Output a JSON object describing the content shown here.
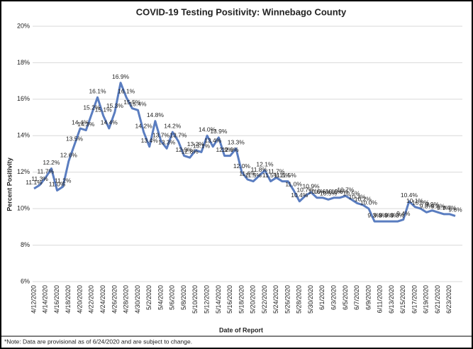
{
  "chart_data": {
    "type": "line",
    "title": "COVID-19 Testing Positivity: Winnebago County",
    "x_label": "Date of Report",
    "y_label": "Percent Positivity",
    "note": "*Note: Data are provisional as of 6/24/2020 and are subject to change.",
    "color": "#5a7dc0",
    "grid": true,
    "ylim": [
      6,
      20
    ],
    "yticks": [
      {
        "value": 6,
        "label": "6%"
      },
      {
        "value": 8,
        "label": "8%"
      },
      {
        "value": 10,
        "label": "10%"
      },
      {
        "value": 12,
        "label": "12%"
      },
      {
        "value": 14,
        "label": "14%"
      },
      {
        "value": 16,
        "label": "16%"
      },
      {
        "value": 18,
        "label": "18%"
      },
      {
        "value": 20,
        "label": "20%"
      }
    ],
    "categories": [
      "4/12/2020",
      null,
      "4/14/2020",
      null,
      "4/16/2020",
      null,
      "4/18/2020",
      null,
      "4/20/2020",
      null,
      "4/22/2020",
      null,
      "4/24/2020",
      null,
      "4/26/2020",
      null,
      "4/28/2020",
      null,
      "4/30/2020",
      null,
      "5/2/2020",
      null,
      "5/4/2020",
      null,
      "5/6/2020",
      null,
      "5/8/2020",
      null,
      "5/10/2020",
      null,
      "5/12/2020",
      null,
      "5/14/2020",
      null,
      "5/16/2020",
      null,
      "5/18/2020",
      null,
      "5/20/2020",
      null,
      "5/22/2020",
      null,
      "5/24/2020",
      null,
      "5/26/2020",
      null,
      "5/28/2020",
      null,
      "5/30/2020",
      null,
      "6/1/2020",
      null,
      "6/3/2020",
      null,
      "6/5/2020",
      null,
      "6/7/2020",
      null,
      "6/9/2020",
      null,
      "6/11/2020",
      null,
      "6/13/2020",
      null,
      "6/15/2020",
      null,
      "6/17/2020",
      null,
      "6/19/2020",
      null,
      "6/21/2020",
      null,
      "6/23/2020",
      null
    ],
    "values": [
      11.1,
      11.3,
      11.7,
      12.2,
      11.0,
      11.2,
      12.6,
      13.5,
      14.4,
      14.3,
      15.2,
      16.1,
      15.1,
      14.4,
      15.3,
      16.9,
      16.1,
      15.5,
      15.4,
      14.2,
      13.4,
      14.8,
      13.7,
      13.3,
      14.2,
      13.7,
      12.9,
      12.8,
      13.2,
      13.1,
      14.0,
      13.4,
      13.9,
      12.9,
      12.9,
      13.3,
      12.0,
      11.6,
      11.5,
      11.8,
      12.1,
      11.5,
      11.7,
      11.5,
      11.5,
      11.0,
      10.4,
      10.7,
      10.9,
      10.6,
      10.6,
      10.5,
      10.6,
      10.6,
      10.7,
      10.5,
      10.3,
      10.2,
      10.0,
      9.3,
      9.3,
      9.3,
      9.3,
      9.3,
      9.4,
      10.4,
      10.1,
      10.0,
      9.8,
      9.9,
      9.8,
      9.7,
      9.7,
      9.6
    ],
    "value_labels": [
      "11.1%",
      "11.3%",
      "11.7%",
      "12.2%",
      "11.0%",
      "11.2%",
      "12.6%",
      "13.5%",
      "14.4%",
      "14.3%",
      "15.2%",
      "16.1%",
      "15.1%",
      "14.4%",
      "15.3%",
      "16.9%",
      "16.1%",
      "15.5%",
      "15.4%",
      "14.2%",
      "13.4%",
      "14.8%",
      "13.7%",
      "13.3%",
      "14.2%",
      "13.7%",
      "12.9%",
      "12.8%",
      "13.2%",
      "13.1%",
      "14.0%",
      "13.4%",
      "13.9%",
      "12.9%",
      "12.9%",
      "13.3%",
      "12.0%",
      "11.6%",
      "11.5%",
      "11.8%",
      "12.1%",
      "11.5%",
      "11.7%",
      "11.5%",
      "11.5%",
      "11.0%",
      "10.4%",
      "10.7%",
      "10.9%",
      "10.6%",
      "10.6%",
      "10.5%",
      "10.6%",
      "10.6%",
      "10.7%",
      "10.5%",
      "10.3%",
      "10.2%",
      "10.0%",
      "9.3%",
      "9.3%",
      "9.3%",
      "9.3%",
      "9.3%",
      "9.4%",
      "10.4%",
      "10.1%",
      "10.0%",
      "9.8%",
      "9.9%",
      "9.8%",
      "9.7%",
      "9.7%",
      "9.6%"
    ]
  }
}
